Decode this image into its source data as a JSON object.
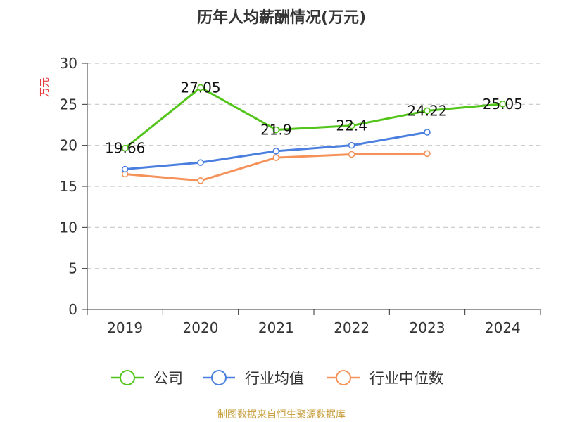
{
  "chart_data": {
    "type": "line",
    "title": "历年人均薪酬情况(万元)",
    "ylabel": "万元",
    "xlabel": "",
    "categories": [
      "2019",
      "2020",
      "2021",
      "2022",
      "2023",
      "2024"
    ],
    "ylim": [
      0,
      30
    ],
    "yticks": [
      "0",
      "5",
      "10",
      "15",
      "20",
      "25",
      "30"
    ],
    "grid": "horizontal-dashed",
    "legend_position": "bottom",
    "series": [
      {
        "name": "公司",
        "color": "#52c41a",
        "values": [
          19.66,
          27.05,
          21.9,
          22.4,
          24.22,
          25.05
        ],
        "labels": [
          "19.66",
          "27.05",
          "21.9",
          "22.4",
          "24.22",
          "25.05"
        ]
      },
      {
        "name": "行业均值",
        "color": "#4a7fe0",
        "values": [
          17.1,
          17.9,
          19.3,
          20.0,
          21.6,
          null
        ]
      },
      {
        "name": "行业中位数",
        "color": "#f5925a",
        "values": [
          16.5,
          15.7,
          18.5,
          18.9,
          19.0,
          null
        ]
      }
    ]
  },
  "axis_label_color": "#e83a3a",
  "source_note": "制图数据来自恒生聚源数据库",
  "source_color": "#c8a040"
}
